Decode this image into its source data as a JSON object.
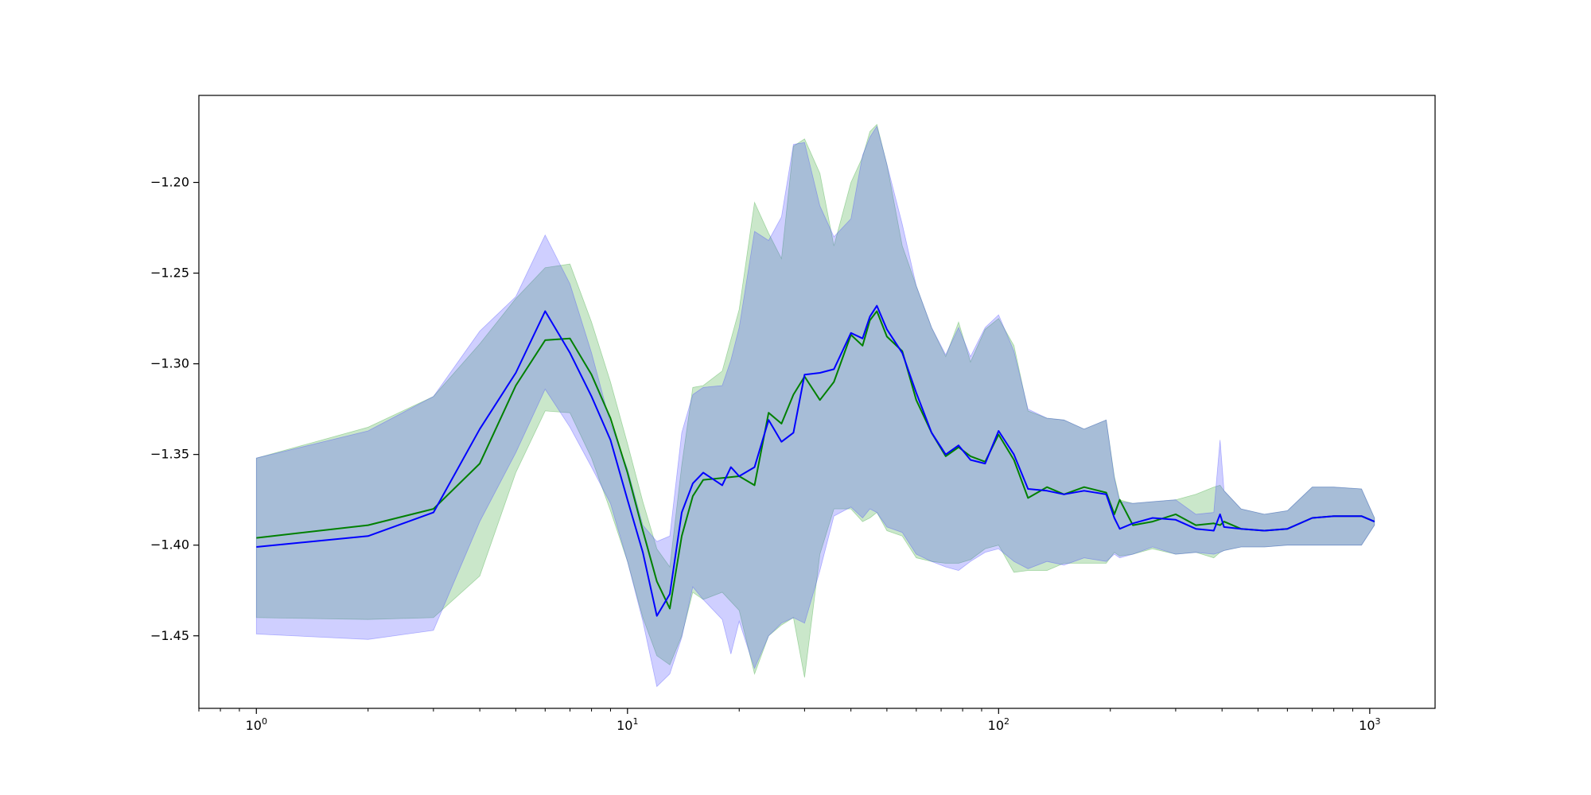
{
  "chart_data": {
    "type": "line",
    "title": "",
    "xlabel": "",
    "ylabel": "",
    "xscale": "log",
    "xlim": [
      0.7,
      1500
    ],
    "ylim": [
      -1.49,
      -1.152
    ],
    "grid": false,
    "legend": "none",
    "x_ticks": [
      {
        "value": 1,
        "base": "10",
        "exp": "0"
      },
      {
        "value": 10,
        "base": "10",
        "exp": "1"
      },
      {
        "value": 100,
        "base": "10",
        "exp": "2"
      },
      {
        "value": 1000,
        "base": "10",
        "exp": "3"
      }
    ],
    "y_ticks": [
      {
        "value": -1.45,
        "label": "−1.45"
      },
      {
        "value": -1.4,
        "label": "−1.40"
      },
      {
        "value": -1.35,
        "label": "−1.35"
      },
      {
        "value": -1.3,
        "label": "−1.30"
      },
      {
        "value": -1.25,
        "label": "−1.25"
      },
      {
        "value": -1.2,
        "label": "−1.20"
      }
    ],
    "series": [
      {
        "color": "#008000",
        "band_color": "#2ca02c",
        "band_opacity": 0.25,
        "x": [
          1,
          2,
          3,
          4,
          5,
          6,
          7,
          8,
          9,
          10,
          11,
          12,
          13,
          14,
          15,
          16,
          18,
          20,
          22,
          24,
          26,
          28,
          30,
          33,
          36,
          40,
          43,
          45,
          47,
          50,
          55,
          60,
          66,
          72,
          78,
          84,
          92,
          100,
          110,
          120,
          135,
          150,
          170,
          195,
          205,
          212,
          230,
          260,
          300,
          340,
          380,
          395,
          405,
          450,
          520,
          600,
          700,
          800,
          950,
          1030
        ],
        "y": [
          -1.396,
          -1.389,
          -1.38,
          -1.355,
          -1.312,
          -1.287,
          -1.286,
          -1.306,
          -1.33,
          -1.36,
          -1.392,
          -1.42,
          -1.435,
          -1.395,
          -1.373,
          -1.364,
          -1.363,
          -1.362,
          -1.367,
          -1.327,
          -1.333,
          -1.317,
          -1.307,
          -1.32,
          -1.31,
          -1.284,
          -1.29,
          -1.276,
          -1.271,
          -1.285,
          -1.293,
          -1.32,
          -1.338,
          -1.351,
          -1.346,
          -1.351,
          -1.354,
          -1.339,
          -1.353,
          -1.374,
          -1.368,
          -1.372,
          -1.368,
          -1.371,
          -1.383,
          -1.375,
          -1.389,
          -1.387,
          -1.383,
          -1.389,
          -1.388,
          -1.389,
          -1.387,
          -1.391,
          -1.392,
          -1.391,
          -1.385,
          -1.384,
          -1.384,
          -1.387
        ],
        "y_upper": [
          -1.352,
          -1.335,
          -1.318,
          -1.289,
          -1.264,
          -1.247,
          -1.245,
          -1.277,
          -1.31,
          -1.344,
          -1.376,
          -1.402,
          -1.412,
          -1.356,
          -1.313,
          -1.312,
          -1.304,
          -1.27,
          -1.211,
          -1.228,
          -1.242,
          -1.18,
          -1.176,
          -1.195,
          -1.235,
          -1.2,
          -1.186,
          -1.172,
          -1.168,
          -1.19,
          -1.235,
          -1.257,
          -1.28,
          -1.296,
          -1.277,
          -1.299,
          -1.281,
          -1.275,
          -1.29,
          -1.326,
          -1.33,
          -1.331,
          -1.336,
          -1.331,
          -1.362,
          -1.375,
          -1.377,
          -1.376,
          -1.375,
          -1.372,
          -1.368,
          -1.367,
          -1.37,
          -1.38,
          -1.383,
          -1.381,
          -1.368,
          -1.368,
          -1.369,
          -1.385
        ],
        "y_lower": [
          -1.44,
          -1.441,
          -1.44,
          -1.417,
          -1.36,
          -1.326,
          -1.327,
          -1.352,
          -1.381,
          -1.409,
          -1.44,
          -1.461,
          -1.466,
          -1.45,
          -1.426,
          -1.43,
          -1.426,
          -1.436,
          -1.471,
          -1.45,
          -1.444,
          -1.44,
          -1.473,
          -1.405,
          -1.38,
          -1.38,
          -1.387,
          -1.385,
          -1.382,
          -1.392,
          -1.395,
          -1.407,
          -1.409,
          -1.41,
          -1.41,
          -1.408,
          -1.402,
          -1.4,
          -1.415,
          -1.414,
          -1.414,
          -1.41,
          -1.41,
          -1.41,
          -1.404,
          -1.406,
          -1.405,
          -1.402,
          -1.405,
          -1.404,
          -1.407,
          -1.404,
          -1.403,
          -1.401,
          -1.401,
          -1.4,
          -1.4,
          -1.4,
          -1.4,
          -1.389
        ]
      },
      {
        "color": "#0000ff",
        "band_color": "#4040ff",
        "band_opacity": 0.25,
        "x": [
          1,
          2,
          3,
          4,
          5,
          6,
          7,
          8,
          9,
          10,
          11,
          12,
          13,
          14,
          15,
          16,
          18,
          19,
          20,
          22,
          24,
          26,
          28,
          30,
          33,
          36,
          40,
          43,
          45,
          47,
          50,
          55,
          60,
          66,
          72,
          78,
          84,
          92,
          100,
          110,
          120,
          135,
          150,
          170,
          195,
          205,
          212,
          230,
          260,
          300,
          340,
          380,
          395,
          405,
          450,
          520,
          600,
          700,
          800,
          950,
          1030
        ],
        "y": [
          -1.401,
          -1.395,
          -1.382,
          -1.336,
          -1.305,
          -1.271,
          -1.294,
          -1.318,
          -1.342,
          -1.375,
          -1.404,
          -1.439,
          -1.427,
          -1.382,
          -1.366,
          -1.36,
          -1.367,
          -1.357,
          -1.362,
          -1.357,
          -1.331,
          -1.343,
          -1.338,
          -1.306,
          -1.305,
          -1.303,
          -1.283,
          -1.286,
          -1.274,
          -1.268,
          -1.281,
          -1.294,
          -1.316,
          -1.338,
          -1.35,
          -1.345,
          -1.353,
          -1.355,
          -1.337,
          -1.35,
          -1.369,
          -1.37,
          -1.372,
          -1.37,
          -1.372,
          -1.385,
          -1.391,
          -1.388,
          -1.385,
          -1.386,
          -1.391,
          -1.392,
          -1.383,
          -1.39,
          -1.391,
          -1.392,
          -1.391,
          -1.385,
          -1.384,
          -1.384,
          -1.387
        ],
        "y_upper": [
          -1.352,
          -1.337,
          -1.318,
          -1.282,
          -1.263,
          -1.229,
          -1.256,
          -1.294,
          -1.333,
          -1.358,
          -1.389,
          -1.398,
          -1.395,
          -1.338,
          -1.317,
          -1.313,
          -1.312,
          -1.298,
          -1.28,
          -1.227,
          -1.232,
          -1.219,
          -1.179,
          -1.178,
          -1.213,
          -1.23,
          -1.22,
          -1.185,
          -1.175,
          -1.169,
          -1.19,
          -1.223,
          -1.257,
          -1.28,
          -1.295,
          -1.28,
          -1.296,
          -1.28,
          -1.273,
          -1.293,
          -1.325,
          -1.33,
          -1.331,
          -1.336,
          -1.331,
          -1.363,
          -1.376,
          -1.377,
          -1.376,
          -1.375,
          -1.383,
          -1.382,
          -1.342,
          -1.37,
          -1.38,
          -1.383,
          -1.381,
          -1.368,
          -1.368,
          -1.369,
          -1.385
        ],
        "y_lower": [
          -1.449,
          -1.452,
          -1.447,
          -1.387,
          -1.349,
          -1.314,
          -1.335,
          -1.357,
          -1.377,
          -1.409,
          -1.442,
          -1.478,
          -1.471,
          -1.451,
          -1.423,
          -1.43,
          -1.441,
          -1.46,
          -1.442,
          -1.468,
          -1.45,
          -1.443,
          -1.44,
          -1.443,
          -1.414,
          -1.384,
          -1.379,
          -1.385,
          -1.38,
          -1.382,
          -1.39,
          -1.393,
          -1.405,
          -1.409,
          -1.412,
          -1.414,
          -1.409,
          -1.404,
          -1.402,
          -1.409,
          -1.413,
          -1.409,
          -1.411,
          -1.407,
          -1.409,
          -1.405,
          -1.407,
          -1.405,
          -1.401,
          -1.405,
          -1.404,
          -1.405,
          -1.404,
          -1.403,
          -1.401,
          -1.401,
          -1.4,
          -1.4,
          -1.4,
          -1.4,
          -1.389
        ]
      }
    ]
  }
}
